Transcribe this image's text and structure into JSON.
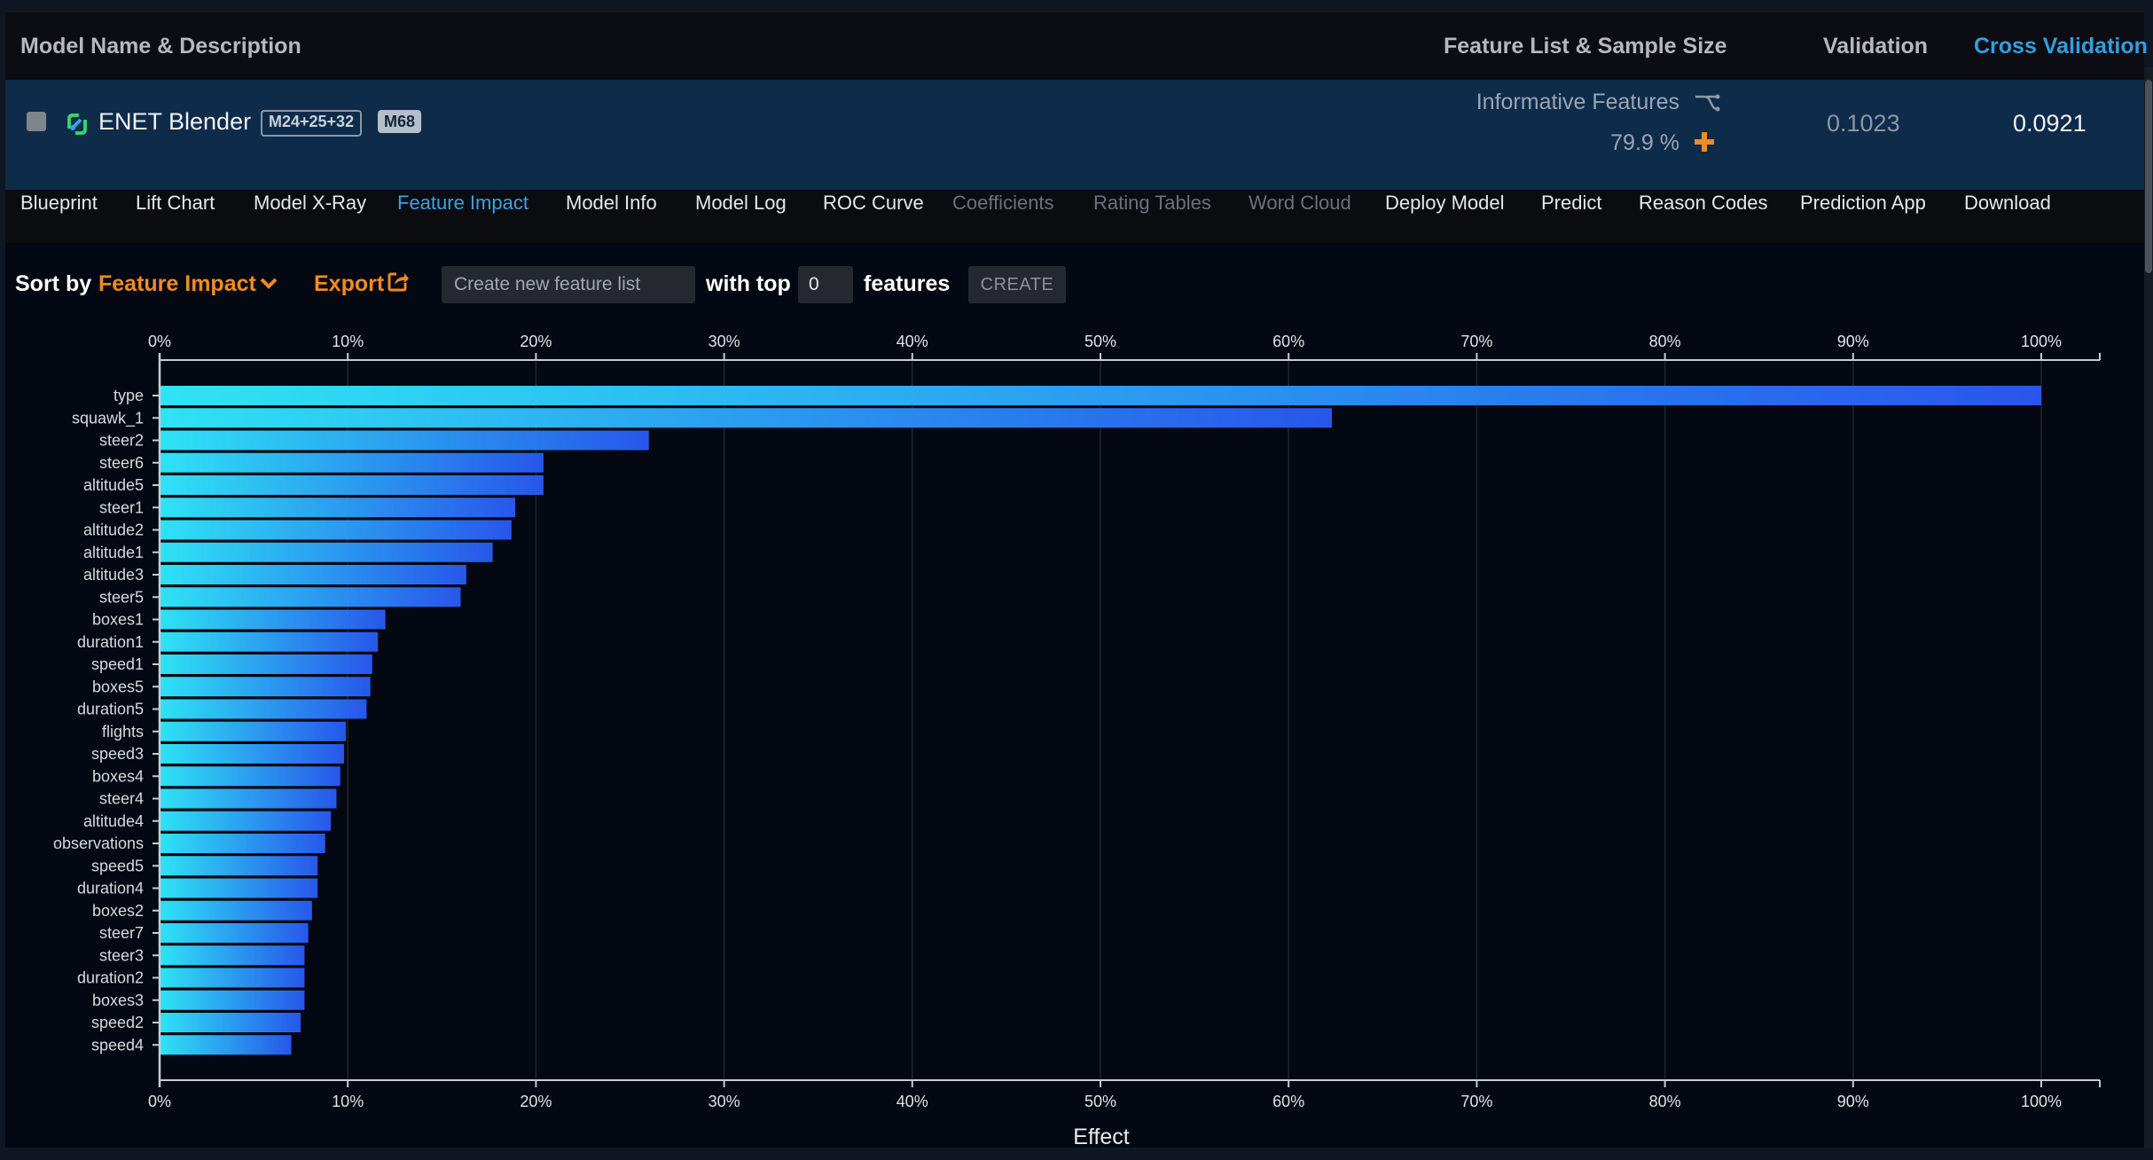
{
  "header": {
    "model_name_col": "Model Name & Description",
    "feature_list_col": "Feature List & Sample Size",
    "validation_col": "Validation",
    "cross_validation_col": "Cross Validation"
  },
  "model": {
    "name": "ENET Blender",
    "badge_blend": "M24+25+32",
    "badge_id": "M68",
    "feature_list": "Informative Features",
    "sample_size": "79.9 %",
    "validation": "0.1023",
    "cross_validation": "0.0921",
    "icon": "blender-icon"
  },
  "tabs": [
    {
      "label": "Blueprint",
      "state": "normal"
    },
    {
      "label": "Lift Chart",
      "state": "normal"
    },
    {
      "label": "Model X-Ray",
      "state": "normal"
    },
    {
      "label": "Feature Impact",
      "state": "active"
    },
    {
      "label": "Model Info",
      "state": "normal"
    },
    {
      "label": "Model Log",
      "state": "normal"
    },
    {
      "label": "ROC Curve",
      "state": "normal"
    },
    {
      "label": "Coefficients",
      "state": "disabled"
    },
    {
      "label": "Rating Tables",
      "state": "disabled"
    },
    {
      "label": "Word Cloud",
      "state": "disabled"
    },
    {
      "label": "Deploy Model",
      "state": "normal"
    },
    {
      "label": "Predict",
      "state": "normal"
    },
    {
      "label": "Reason Codes",
      "state": "normal"
    },
    {
      "label": "Prediction App",
      "state": "normal"
    },
    {
      "label": "Download",
      "state": "normal"
    }
  ],
  "toolbar": {
    "sort_by_label": "Sort by",
    "sort_by_value": "Feature Impact",
    "export_label": "Export",
    "feature_list_placeholder": "Create new feature list",
    "with_top_label": "with top",
    "top_n_value": "0",
    "features_label": "features",
    "create_label": "CREATE"
  },
  "colors": {
    "accent_blue": "#3aa2e6",
    "accent_orange": "#f08a24",
    "bar_gradient_start": "#2fe3f5",
    "bar_gradient_end": "#2757ea",
    "model_row_bg": "#0e2b4a"
  },
  "chart_data": {
    "type": "bar",
    "orientation": "horizontal",
    "xlabel": "Effect",
    "xlim": [
      0,
      100
    ],
    "x_ticks": [
      "0%",
      "10%",
      "20%",
      "30%",
      "40%",
      "50%",
      "60%",
      "70%",
      "80%",
      "90%",
      "100%"
    ],
    "grid": true,
    "categories": [
      "type",
      "squawk_1",
      "steer2",
      "steer6",
      "altitude5",
      "steer1",
      "altitude2",
      "altitude1",
      "altitude3",
      "steer5",
      "boxes1",
      "duration1",
      "speed1",
      "boxes5",
      "duration5",
      "flights",
      "speed3",
      "boxes4",
      "steer4",
      "altitude4",
      "observations",
      "speed5",
      "duration4",
      "boxes2",
      "steer7",
      "steer3",
      "duration2",
      "boxes3",
      "speed2",
      "speed4"
    ],
    "values": [
      100,
      62.3,
      26.0,
      20.4,
      20.4,
      18.9,
      18.7,
      17.7,
      16.3,
      16.0,
      12.0,
      11.6,
      11.3,
      11.2,
      11.0,
      9.9,
      9.8,
      9.6,
      9.4,
      9.1,
      8.8,
      8.4,
      8.4,
      8.1,
      7.9,
      7.7,
      7.7,
      7.7,
      7.5,
      7.0
    ]
  }
}
